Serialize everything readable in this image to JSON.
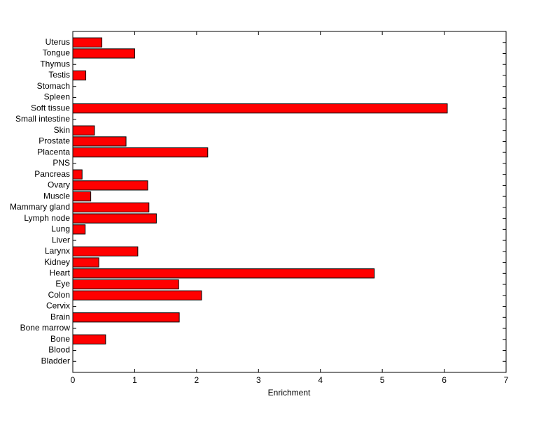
{
  "chart_data": {
    "type": "barh",
    "xlabel": "Enrichment",
    "categories": [
      "Bladder",
      "Blood",
      "Bone",
      "Bone marrow",
      "Brain",
      "Cervix",
      "Colon",
      "Eye",
      "Heart",
      "Kidney",
      "Larynx",
      "Liver",
      "Lung",
      "Lymph node",
      "Mammary gland",
      "Muscle",
      "Ovary",
      "Pancreas",
      "PNS",
      "Placenta",
      "Prostate",
      "Skin",
      "Small intestine",
      "Soft tissue",
      "Spleen",
      "Stomach",
      "Testis",
      "Thymus",
      "Tongue",
      "Uterus"
    ],
    "values": [
      0,
      0,
      0.53,
      0,
      1.72,
      0,
      2.08,
      1.71,
      4.87,
      0.42,
      1.05,
      0,
      0.2,
      1.35,
      1.23,
      0.29,
      1.21,
      0.15,
      0,
      2.18,
      0.86,
      0.35,
      0,
      6.05,
      0,
      0,
      0.21,
      0,
      1.0,
      0.47
    ],
    "color": "#ff0000",
    "xlim": [
      0,
      7
    ],
    "xticks": [
      0,
      1,
      2,
      3,
      4,
      5,
      6,
      7
    ]
  }
}
